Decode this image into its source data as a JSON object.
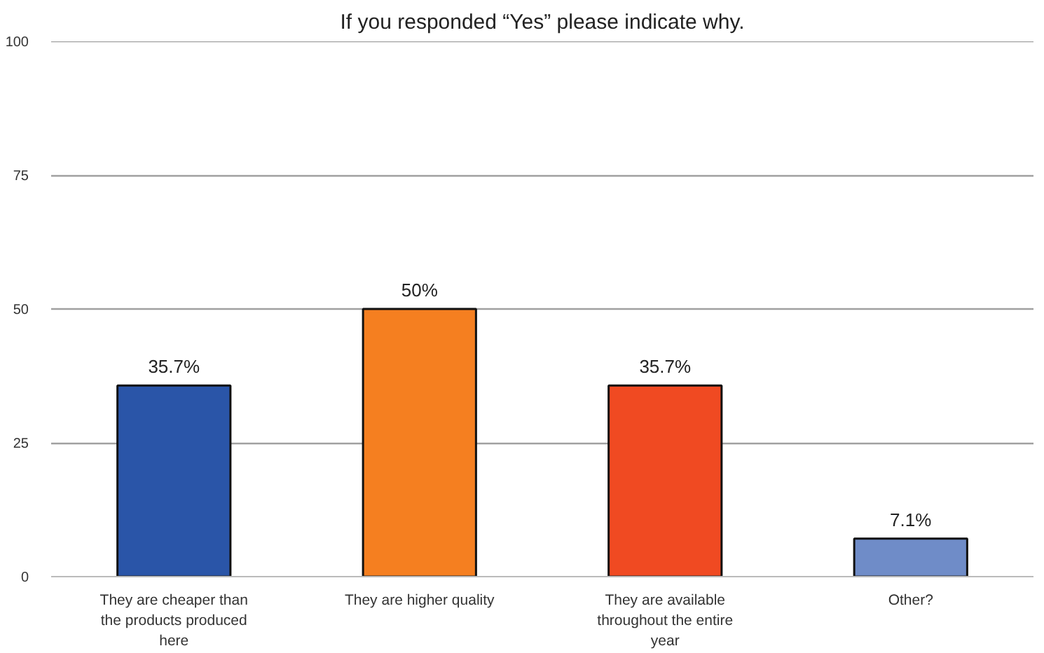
{
  "chart_data": {
    "type": "bar",
    "title": "If you responded “Yes” please indicate why.",
    "categories": [
      "They are cheaper than the products produced here",
      "They are higher quality",
      "They are available throughout the entire year",
      "Other?"
    ],
    "values": [
      35.7,
      50,
      35.7,
      7.1
    ],
    "colors": [
      "#2a55a8",
      "#f57f20",
      "#f04a22",
      "#6f8cc8"
    ],
    "value_labels": [
      "35.7%",
      "50%",
      "35.7%",
      "7.1%"
    ],
    "ylim": [
      0,
      100
    ],
    "yticks": [
      0,
      25,
      50,
      75,
      100
    ],
    "grid": "y"
  }
}
